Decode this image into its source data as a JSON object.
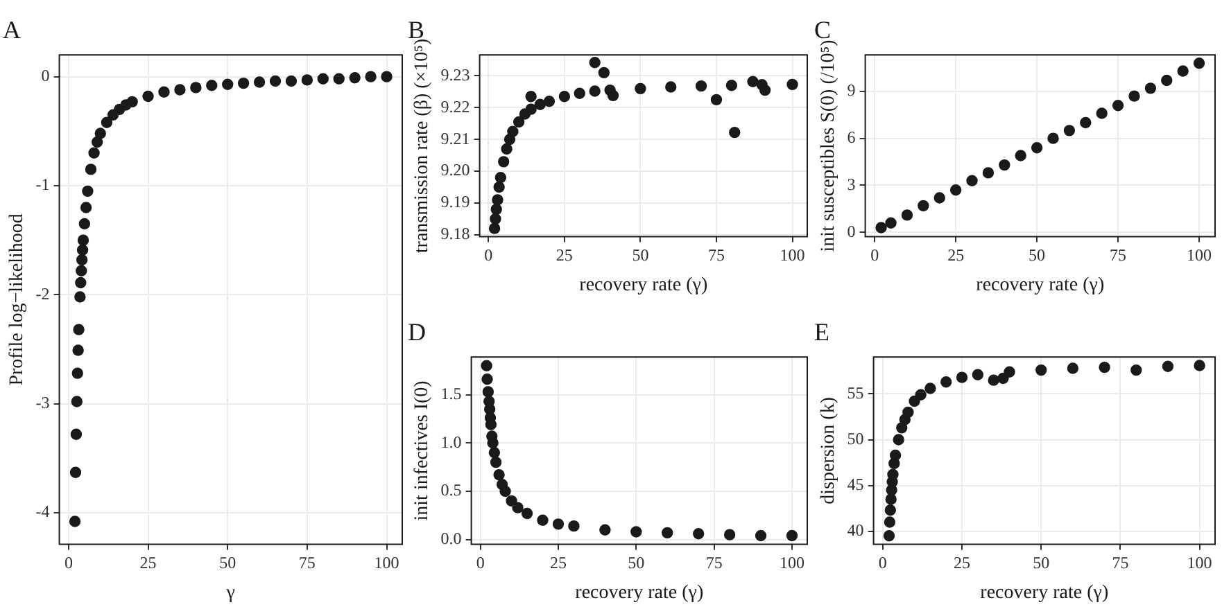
{
  "chart_data": [
    {
      "type": "scatter",
      "title": "A",
      "xlabel": "γ",
      "ylabel": "Profile log−likelihood",
      "color": "#1a1a1a",
      "marker": "circle",
      "grid": true,
      "xlim": [
        -2.9,
        104.9
      ],
      "xticks": [
        0,
        25,
        50,
        75,
        100
      ],
      "ylim": [
        -4.29,
        0.2
      ],
      "yticks": [
        -4,
        -3,
        -2,
        -1,
        0
      ],
      "x": [
        2,
        2.2,
        2.4,
        2.6,
        2.8,
        3,
        3.2,
        3.6,
        3.8,
        4,
        4.2,
        4.4,
        4.6,
        5,
        5.5,
        6,
        7,
        8,
        9,
        10,
        12,
        14,
        16,
        18,
        20,
        25,
        30,
        35,
        40,
        45,
        50,
        55,
        60,
        65,
        70,
        75,
        80,
        85,
        90,
        95,
        100
      ],
      "values": [
        -4.08,
        -3.63,
        -3.28,
        -2.98,
        -2.72,
        -2.51,
        -2.32,
        -2.02,
        -1.89,
        -1.78,
        -1.68,
        -1.59,
        -1.5,
        -1.35,
        -1.2,
        -1.05,
        -0.85,
        -0.7,
        -0.6,
        -0.52,
        -0.42,
        -0.35,
        -0.3,
        -0.26,
        -0.23,
        -0.18,
        -0.14,
        -0.12,
        -0.1,
        -0.08,
        -0.07,
        -0.06,
        -0.05,
        -0.04,
        -0.04,
        -0.03,
        -0.02,
        -0.02,
        -0.01,
        0,
        0
      ]
    },
    {
      "type": "scatter",
      "title": "B",
      "xlabel": "recovery rate (γ)",
      "ylabel": "transmission rate (β) (×10⁵)",
      "color": "#1a1a1a",
      "marker": "circle",
      "grid": true,
      "xlim": [
        -2.9,
        104.9
      ],
      "xticks": [
        0,
        25,
        50,
        75,
        100
      ],
      "ylim": [
        9.1794,
        9.2366
      ],
      "yticks": [
        9.18,
        9.19,
        {
          "value": 9.2,
          "label": "9.20"
        },
        9.21,
        9.22,
        9.23
      ],
      "x": [
        2,
        2.3,
        2.6,
        3,
        3.5,
        4,
        5,
        6,
        7,
        8,
        10,
        12,
        14,
        14,
        17,
        20,
        25,
        30,
        35,
        35,
        38,
        40,
        41,
        50,
        60,
        70,
        75,
        80,
        81,
        87,
        90,
        91,
        100
      ],
      "values": [
        9.182,
        9.185,
        9.188,
        9.191,
        9.195,
        9.198,
        9.203,
        9.207,
        9.21,
        9.2125,
        9.2155,
        9.218,
        9.2195,
        9.2235,
        9.221,
        9.222,
        9.2235,
        9.2245,
        9.2252,
        9.2342,
        9.231,
        9.2255,
        9.2238,
        9.226,
        9.2265,
        9.2268,
        9.2225,
        9.227,
        9.2122,
        9.2282,
        9.2272,
        9.2255,
        9.2273
      ]
    },
    {
      "type": "scatter",
      "title": "C",
      "xlabel": "recovery rate (γ)",
      "ylabel": "init susceptibles S(0) (/10⁵)",
      "color": "#1a1a1a",
      "marker": "circle",
      "grid": true,
      "xlim": [
        -2.9,
        104.9
      ],
      "xticks": [
        0,
        25,
        50,
        75,
        100
      ],
      "ylim": [
        -0.28,
        11.33
      ],
      "yticks": [
        0,
        3,
        6,
        9
      ],
      "x": [
        2,
        5,
        10,
        15,
        20,
        25,
        30,
        35,
        40,
        45,
        50,
        55,
        60,
        65,
        70,
        75,
        80,
        85,
        90,
        95,
        100
      ],
      "values": [
        0.3,
        0.6,
        1.1,
        1.7,
        2.2,
        2.7,
        3.3,
        3.8,
        4.3,
        4.9,
        5.4,
        6,
        6.5,
        7,
        7.6,
        8.1,
        8.7,
        9.2,
        9.7,
        10.3,
        10.8
      ]
    },
    {
      "type": "scatter",
      "title": "D",
      "xlabel": "recovery rate (γ)",
      "ylabel": "init infectives I(0)",
      "color": "#1a1a1a",
      "marker": "circle",
      "grid": true,
      "xlim": [
        -2.9,
        104.9
      ],
      "xticks": [
        0,
        25,
        50,
        75,
        100
      ],
      "ylim": [
        -0.05,
        1.89
      ],
      "yticks": [
        {
          "value": 0,
          "label": "0.0"
        },
        0.5,
        {
          "value": 1,
          "label": "1.0"
        },
        1.5
      ],
      "x": [
        2,
        2.2,
        2.5,
        2.8,
        3,
        3.2,
        3.4,
        3.7,
        4,
        4.5,
        5,
        6,
        7,
        8,
        10,
        12,
        15,
        20,
        25,
        30,
        40,
        50,
        60,
        70,
        80,
        90,
        100
      ],
      "values": [
        1.8,
        1.66,
        1.53,
        1.43,
        1.35,
        1.26,
        1.19,
        1.07,
        1,
        0.9,
        0.8,
        0.67,
        0.57,
        0.5,
        0.4,
        0.33,
        0.27,
        0.2,
        0.16,
        0.14,
        0.1,
        0.08,
        0.07,
        0.06,
        0.05,
        0.04,
        0.04
      ]
    },
    {
      "type": "scatter",
      "title": "E",
      "xlabel": "recovery rate (γ)",
      "ylabel": "dispersion (k)",
      "color": "#1a1a1a",
      "marker": "circle",
      "grid": true,
      "xlim": [
        -2.9,
        104.9
      ],
      "xticks": [
        0,
        25,
        50,
        75,
        100
      ],
      "ylim": [
        38.57,
        59.03
      ],
      "yticks": [
        40,
        45,
        50,
        55
      ],
      "x": [
        2,
        2.2,
        2.4,
        2.6,
        2.8,
        3,
        3.2,
        3.6,
        4,
        5,
        6,
        7,
        8,
        10,
        12,
        15,
        20,
        25,
        30,
        35,
        38,
        40,
        50,
        60,
        70,
        80,
        90,
        100
      ],
      "values": [
        39.5,
        41,
        42.3,
        43.5,
        44.5,
        45.4,
        46.2,
        47.4,
        48.3,
        50,
        51.3,
        52.2,
        53,
        54.2,
        54.9,
        55.6,
        56.3,
        56.8,
        57.1,
        56.5,
        56.7,
        57.4,
        57.6,
        57.8,
        57.9,
        57.6,
        58,
        58.1
      ]
    }
  ]
}
